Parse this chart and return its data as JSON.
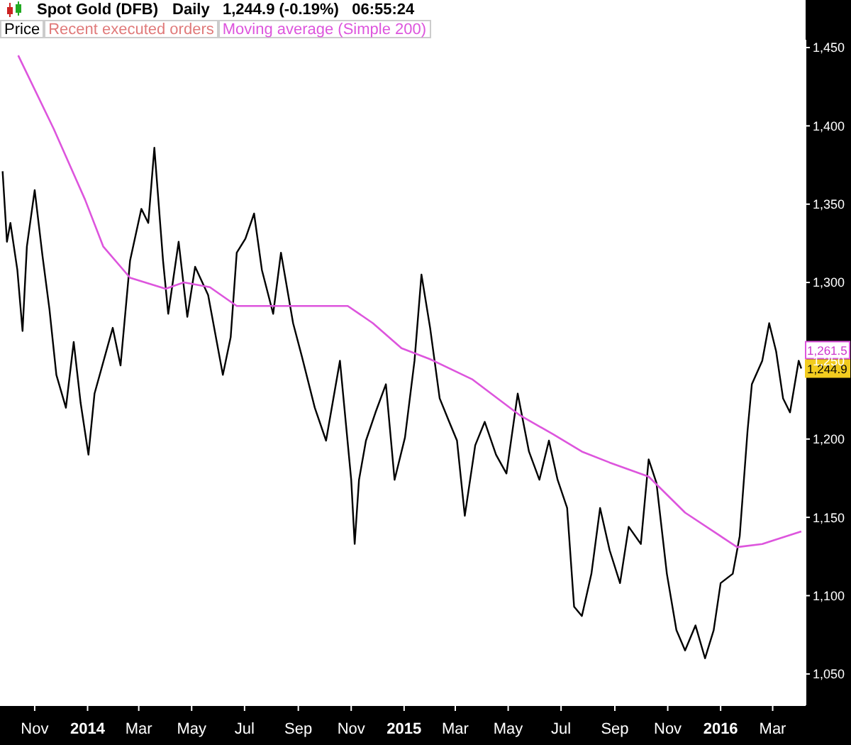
{
  "chart_data": {
    "type": "line",
    "title": "Spot Gold (DFB)",
    "subtitle": "Daily   1,244.9 (-0.19%)   06:55:24",
    "annotations": [
      "Recent executed orders",
      "1,261.5",
      "1,244.9"
    ],
    "series": [
      {
        "name": "Price",
        "color": "#000000",
        "x": [
          "2013-09-25",
          "2013-09-30",
          "2013-10-04",
          "2013-10-12",
          "2013-10-18",
          "2013-10-23",
          "2013-11-01",
          "2013-11-10",
          "2013-11-18",
          "2013-11-26",
          "2013-12-07",
          "2013-12-16",
          "2013-12-24",
          "2014-01-02",
          "2014-01-09",
          "2014-01-30",
          "2014-02-08",
          "2014-02-19",
          "2014-03-04",
          "2014-03-12",
          "2014-03-19",
          "2014-03-29",
          "2014-04-04",
          "2014-04-16",
          "2014-04-26",
          "2014-05-05",
          "2014-05-20",
          "2014-06-06",
          "2014-06-15",
          "2014-06-22",
          "2014-07-02",
          "2014-07-12",
          "2014-07-21",
          "2014-08-03",
          "2014-08-12",
          "2014-08-26",
          "2014-09-05",
          "2014-09-20",
          "2014-10-03",
          "2014-10-19",
          "2014-11-01",
          "2014-11-05",
          "2014-11-10",
          "2014-11-18",
          "2014-11-29",
          "2014-12-11",
          "2014-12-21",
          "2015-01-02",
          "2015-01-13",
          "2015-01-21",
          "2015-01-31",
          "2015-02-11",
          "2015-02-22",
          "2015-03-03",
          "2015-03-12",
          "2015-03-24",
          "2015-04-04",
          "2015-04-17",
          "2015-04-29",
          "2015-05-12",
          "2015-05-25",
          "2015-06-06",
          "2015-06-17",
          "2015-06-27",
          "2015-07-08",
          "2015-07-16",
          "2015-07-25",
          "2015-08-05",
          "2015-08-15",
          "2015-08-26",
          "2015-09-07",
          "2015-09-17",
          "2015-10-01",
          "2015-10-10",
          "2015-10-19",
          "2015-10-31",
          "2015-11-11",
          "2015-11-21",
          "2015-12-03",
          "2015-12-14",
          "2015-12-24",
          "2016-01-01",
          "2016-01-15",
          "2016-01-23",
          "2016-02-01",
          "2016-02-06",
          "2016-02-18",
          "2016-02-26",
          "2016-03-05",
          "2016-03-13",
          "2016-03-21",
          "2016-03-31",
          "2016-04-03"
        ],
        "values": [
          1371,
          1326,
          1338,
          1308,
          1269,
          1323,
          1359,
          1317,
          1283,
          1241,
          1220,
          1262,
          1223,
          1190,
          1229,
          1271,
          1247,
          1314,
          1347,
          1338,
          1386,
          1314,
          1280,
          1326,
          1278,
          1310,
          1292,
          1241,
          1265,
          1319,
          1328,
          1344,
          1308,
          1280,
          1319,
          1274,
          1253,
          1220,
          1199,
          1250,
          1174,
          1133,
          1174,
          1199,
          1217,
          1235,
          1174,
          1201,
          1250,
          1305,
          1271,
          1226,
          1211,
          1199,
          1151,
          1196,
          1211,
          1190,
          1178,
          1229,
          1192,
          1174,
          1199,
          1174,
          1156,
          1093,
          1087,
          1114,
          1156,
          1129,
          1108,
          1144,
          1133,
          1187,
          1172,
          1114,
          1078,
          1065,
          1081,
          1060,
          1078,
          1108,
          1114,
          1138,
          1205,
          1235,
          1250,
          1274,
          1256,
          1226,
          1217,
          1250,
          1245
        ]
      },
      {
        "name": "Moving average (Simple 200)",
        "color": "#dd55dd",
        "x": [
          "2013-10-13",
          "2013-11-23",
          "2013-12-29",
          "2014-01-19",
          "2014-02-19",
          "2014-04-01",
          "2014-04-22",
          "2014-05-22",
          "2014-06-22",
          "2014-08-15",
          "2014-10-28",
          "2014-11-26",
          "2014-12-29",
          "2015-01-31",
          "2015-03-21",
          "2015-05-15",
          "2015-06-22",
          "2015-07-25",
          "2015-08-26",
          "2015-10-10",
          "2015-11-21",
          "2016-01-20",
          "2016-02-18",
          "2016-04-03"
        ],
        "values": [
          1445,
          1398,
          1353,
          1323,
          1303,
          1296,
          1300,
          1297,
          1285,
          1285,
          1285,
          1274,
          1258,
          1251,
          1238,
          1215,
          1203,
          1192,
          1185,
          1176,
          1153,
          1131,
          1133,
          1141
        ]
      }
    ],
    "xlim": [
      "2013-09-22",
      "2016-04-08"
    ],
    "xticks": [
      {
        "value": "2013-11-01",
        "label": "Nov"
      },
      {
        "value": "2014-01-01",
        "label": "2014"
      },
      {
        "value": "2014-03-01",
        "label": "Mar"
      },
      {
        "value": "2014-05-01",
        "label": "May"
      },
      {
        "value": "2014-07-01",
        "label": "Jul"
      },
      {
        "value": "2014-09-01",
        "label": "Sep"
      },
      {
        "value": "2014-11-01",
        "label": "Nov"
      },
      {
        "value": "2015-01-01",
        "label": "2015"
      },
      {
        "value": "2015-03-01",
        "label": "Mar"
      },
      {
        "value": "2015-05-01",
        "label": "May"
      },
      {
        "value": "2015-07-01",
        "label": "Jul"
      },
      {
        "value": "2015-09-01",
        "label": "Sep"
      },
      {
        "value": "2015-11-01",
        "label": "Nov"
      },
      {
        "value": "2016-01-01",
        "label": "2016"
      },
      {
        "value": "2016-03-01",
        "label": "Mar"
      }
    ],
    "ylim": [
      1030,
      1455
    ],
    "yticks": [
      {
        "value": 1050,
        "label": "1,050"
      },
      {
        "value": 1100,
        "label": "1,100"
      },
      {
        "value": 1150,
        "label": "1,150"
      },
      {
        "value": 1200,
        "label": "1,200"
      },
      {
        "value": 1250,
        "label": "1,250"
      },
      {
        "value": 1300,
        "label": "1,300"
      },
      {
        "value": 1350,
        "label": "1,350"
      },
      {
        "value": 1400,
        "label": "1,400"
      },
      {
        "value": 1450,
        "label": "1,450"
      }
    ],
    "grid": false,
    "legend": "top left",
    "marker": "none",
    "line_style": "solid"
  }
}
